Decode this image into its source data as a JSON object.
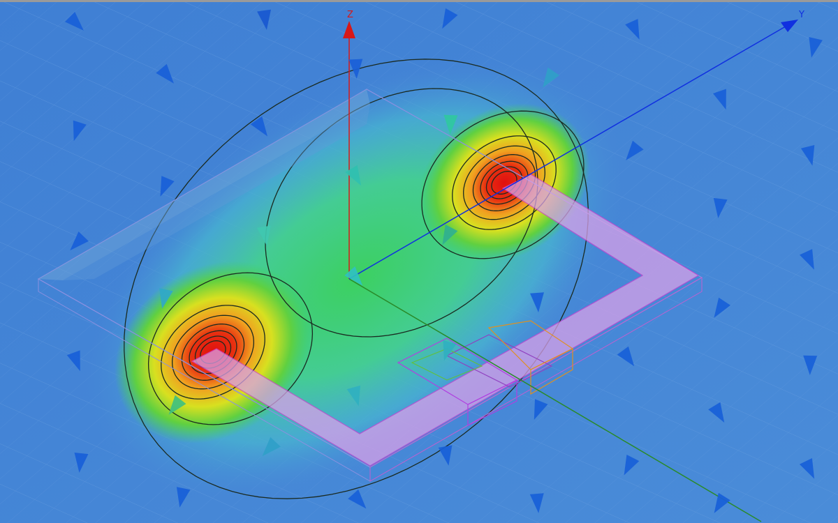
{
  "viewport": {
    "axes": {
      "z": {
        "label": "Z",
        "color": "#d81818"
      },
      "y": {
        "label": "Y",
        "color": "#1030e0"
      },
      "x": {
        "color": "#2a8a2a"
      }
    },
    "colors": {
      "background": "#4b8ed8",
      "field_low": "#4ab0e0",
      "field_mid": "#3cd070",
      "field_high": "#e02010",
      "board_outline": "#d040d0",
      "contour": "#1a2a20",
      "component_outline": "#e09020"
    }
  }
}
